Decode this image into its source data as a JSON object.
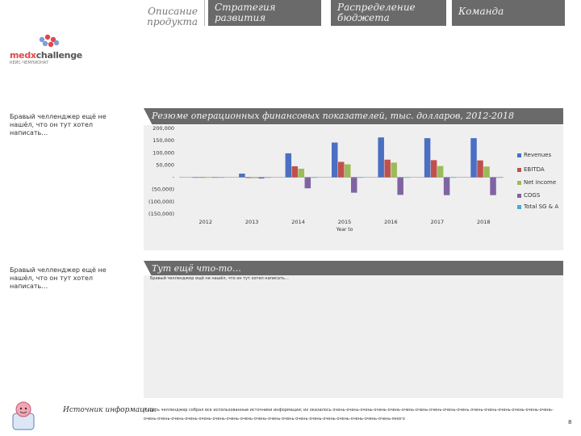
{
  "nav": {
    "tabs": [
      {
        "label": "Описание продукта"
      },
      {
        "label": "Стратегия развития"
      },
      {
        "label": "Распределение бюджета"
      },
      {
        "label": "Команда"
      }
    ]
  },
  "logo": {
    "brand_pre": "medx",
    "brand_post": "challenge",
    "subtitle": "КЕЙС-ЧЕМПИОНАТ"
  },
  "side_notes": [
    "Бравый челленджер ещё не нашёл, что он тут хотел написать…",
    "Бравый челленджер ещё не нашёл, что он тут хотел написать…"
  ],
  "chart_panel": {
    "title": "Резюме операционных финансовых показателей, тыс. долларов, 2012-2018"
  },
  "chart_data": {
    "type": "bar",
    "title": "Резюме операционных финансовых показателей, тыс. долларов, 2012-2018",
    "xlabel": "Year to",
    "ylabel": "",
    "ylim": [
      -150000,
      200000
    ],
    "yticks": [
      "200,000",
      "150,000",
      "100,000",
      "50,000",
      "-",
      "(50,000)",
      "(100,000)",
      "(150,000)"
    ],
    "ytick_values": [
      200000,
      150000,
      100000,
      50000,
      0,
      -50000,
      -100000,
      -150000
    ],
    "categories": [
      "2012",
      "2013",
      "2014",
      "2015",
      "2016",
      "2017",
      "2018"
    ],
    "series": [
      {
        "name": "Revenues",
        "color": "#4a6fc3",
        "values": [
          -1000,
          15000,
          98000,
          142000,
          163000,
          160000,
          160000
        ]
      },
      {
        "name": "EBITDA",
        "color": "#c0504d",
        "values": [
          -2000,
          -3000,
          45000,
          63000,
          72000,
          70000,
          69000
        ]
      },
      {
        "name": "Net income",
        "color": "#9bbb59",
        "values": [
          -1500,
          -3500,
          35000,
          53000,
          60000,
          46000,
          44000
        ]
      },
      {
        "name": "COGS",
        "color": "#8064a2",
        "values": [
          -1500,
          -5000,
          -45000,
          -63000,
          -72000,
          -73000,
          -73000
        ]
      },
      {
        "name": "Total SG & A",
        "color": "#4bacc6",
        "values": [
          0,
          0,
          0,
          0,
          0,
          0,
          0
        ]
      }
    ],
    "legend_position": "right"
  },
  "text_panel": {
    "title": "Тут ещё что-то…",
    "text": "Бравый челленджер ещё не нашёл, что он тут хотел написать…"
  },
  "sources": {
    "label": "Источник информации:",
    "text": "А здесь челленджер собрал все использованные источники информации; их оказалось очень-очень-очень-очень-очень-очень-очень-очень-очень-очень очень-очень-очень-очень-очень-очень-очень-очень-очень-очень-очень-очень-очень-очень-очень-очень-очень-очень-очень-очень-очень-очень-очень-очень-много"
  },
  "page_number": "8"
}
